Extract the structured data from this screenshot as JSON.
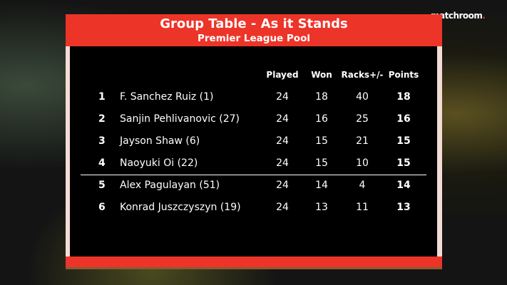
{
  "logo": {
    "text": "matchroom",
    "dot": "."
  },
  "header": {
    "title": "Group Table - As it Stands",
    "subtitle": "Premier League Pool"
  },
  "columns": [
    "Played",
    "Won",
    "Racks+/-",
    "Points"
  ],
  "rows": [
    {
      "rank": "1",
      "name": "F. Sanchez Ruiz (1)",
      "played": "24",
      "won": "18",
      "racks": "40",
      "points": "18"
    },
    {
      "rank": "2",
      "name": "Sanjin Pehlivanovic (27)",
      "played": "24",
      "won": "16",
      "racks": "25",
      "points": "16"
    },
    {
      "rank": "3",
      "name": "Jayson Shaw (6)",
      "played": "24",
      "won": "15",
      "racks": "21",
      "points": "15"
    },
    {
      "rank": "4",
      "name": "Naoyuki Oi (22)",
      "played": "24",
      "won": "15",
      "racks": "10",
      "points": "15"
    },
    {
      "rank": "5",
      "name": "Alex Pagulayan (51)",
      "played": "24",
      "won": "14",
      "racks": "4",
      "points": "14"
    },
    {
      "rank": "6",
      "name": "Konrad Juszczyszyn (19)",
      "played": "24",
      "won": "13",
      "racks": "11",
      "points": "13"
    }
  ],
  "colors": {
    "accent": "#ed3429"
  }
}
